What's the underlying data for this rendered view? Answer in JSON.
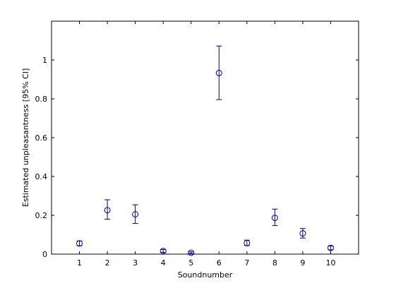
{
  "chart_data": {
    "type": "scatter",
    "xlabel": "Soundnumber",
    "ylabel": "Estimated unpleasantness [95% CI]",
    "xlim": [
      0,
      11
    ],
    "ylim": [
      0,
      1.2
    ],
    "x_ticks": [
      1,
      2,
      3,
      4,
      5,
      6,
      7,
      8,
      9,
      10
    ],
    "x_tick_labels": [
      "1",
      "2",
      "3",
      "4",
      "5",
      "6",
      "7",
      "8",
      "9",
      "10"
    ],
    "y_ticks": [
      0,
      0.2,
      0.4,
      0.6,
      0.8,
      1
    ],
    "y_tick_labels": [
      "0",
      "0.2",
      "0.4",
      "0.6",
      "0.8",
      "1"
    ],
    "grid": false,
    "legend": "none",
    "marker": "circle",
    "color": "#00008B",
    "points": [
      {
        "x": 1,
        "y": 0.055,
        "lower": 0.043,
        "upper": 0.068
      },
      {
        "x": 2,
        "y": 0.226,
        "lower": 0.18,
        "upper": 0.28
      },
      {
        "x": 3,
        "y": 0.205,
        "lower": 0.158,
        "upper": 0.254
      },
      {
        "x": 4,
        "y": 0.016,
        "lower": 0.009,
        "upper": 0.024
      },
      {
        "x": 5,
        "y": 0.007,
        "lower": 0.003,
        "upper": 0.012
      },
      {
        "x": 6,
        "y": 0.933,
        "lower": 0.796,
        "upper": 1.072
      },
      {
        "x": 7,
        "y": 0.057,
        "lower": 0.044,
        "upper": 0.072
      },
      {
        "x": 8,
        "y": 0.187,
        "lower": 0.147,
        "upper": 0.232
      },
      {
        "x": 9,
        "y": 0.107,
        "lower": 0.083,
        "upper": 0.132
      },
      {
        "x": 10,
        "y": 0.032,
        "lower": 0.022,
        "upper": 0.042
      }
    ]
  }
}
